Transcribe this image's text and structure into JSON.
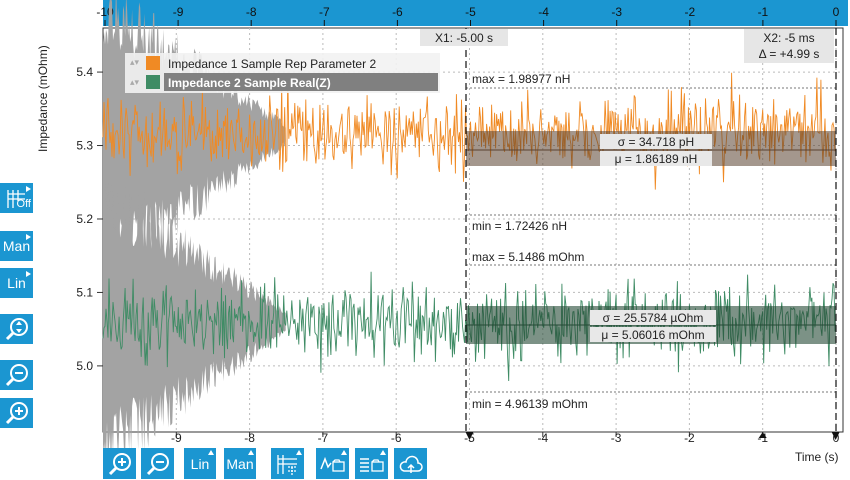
{
  "chart_data": {
    "type": "line",
    "ylabel": "Impedance (mOhm)",
    "xlabel": "Time (s)",
    "xlim": [
      -10,
      0
    ],
    "ylim": [
      4.91,
      5.46
    ],
    "y_ticks": [
      "5.4",
      "5.3",
      "5.2",
      "5.1",
      "5.0"
    ],
    "x_ticks_bottom": [
      "-9",
      "-8",
      "-7",
      "-6",
      "-5",
      "-4",
      "-3",
      "-2",
      "-1",
      "0"
    ],
    "x_ticks_top": [
      "-10",
      "-9",
      "-8",
      "-7",
      "-6",
      "-5",
      "-4",
      "-3",
      "-2",
      "-1",
      "0"
    ],
    "grid": true,
    "legend_placement": "top-left",
    "series": [
      {
        "name": "Impedance 1 Sample Rep Parameter 2",
        "color": "#f08a24",
        "mean_display": 5.315,
        "noise": 0.035
      },
      {
        "name": "Impedance 2 Sample Real(Z)",
        "color": "#3f8c65",
        "mean_display": 5.06,
        "noise": 0.035
      }
    ],
    "cursors": {
      "x1": {
        "label": "X1: -5.00 s",
        "x": -5.0
      },
      "x2": {
        "label": "X2: -5 ms",
        "delta": "Δ = +4.99 s",
        "x": -0.005
      }
    },
    "stats": [
      {
        "max": "max = 1.98977 nH",
        "sigma": "σ = 34.718 pH",
        "mu": "μ = 1.86189 nH",
        "min": "min = 1.72426 nH"
      },
      {
        "max": "max = 5.1486 mOhm",
        "sigma": "σ = 25.5784 µOhm",
        "mu": "μ = 5.06016 mOhm",
        "min": "min = 4.96139 mOhm"
      }
    ]
  },
  "toolbar_left": {
    "off_label": "Off",
    "man_label": "Man",
    "lin_label": "Lin",
    "icons": [
      "grid-off-icon",
      "zoom-fit-icon",
      "zoom-out-icon",
      "zoom-in-icon"
    ]
  },
  "toolbar_bottom": {
    "lin_label": "Lin",
    "man_label": "Man",
    "icons": [
      "zoom-in-icon",
      "zoom-out-icon",
      "cursor-grid-icon",
      "save-chart-icon",
      "save-table-icon",
      "cloud-upload-icon"
    ]
  }
}
